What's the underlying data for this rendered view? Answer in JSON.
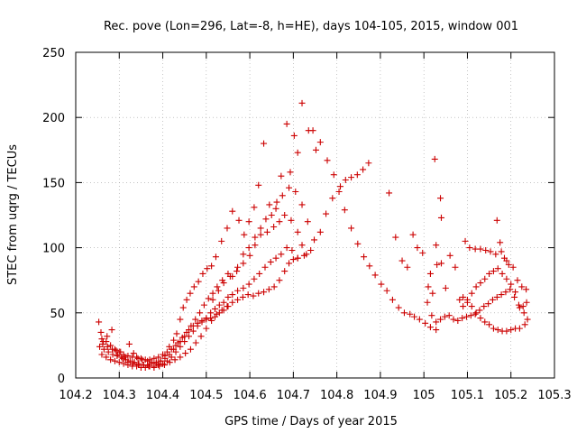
{
  "chart_data": {
    "type": "scatter",
    "title": "Rec. pove (Lon=296, Lat=-8, h=HE), days 104-105, 2015, window 001",
    "xlabel": "GPS time / Days of year 2015",
    "ylabel": "STEC from uqrg / TECUs",
    "xlim": [
      104.2,
      105.3
    ],
    "ylim": [
      0,
      250
    ],
    "xticks": [
      "104.2",
      "104.3",
      "104.4",
      "104.5",
      "104.6",
      "104.7",
      "104.8",
      "104.9",
      "105",
      "105.1",
      "105.2",
      "105.3"
    ],
    "yticks": [
      "0",
      "50",
      "100",
      "150",
      "200",
      "250"
    ],
    "grid": true,
    "marker": "plus",
    "color": "#cc0000",
    "points": [
      [
        104.253,
        43
      ],
      [
        104.258,
        35
      ],
      [
        104.263,
        28
      ],
      [
        104.272,
        32
      ],
      [
        104.283,
        37
      ],
      [
        104.293,
        21
      ],
      [
        104.303,
        20
      ],
      [
        104.313,
        16
      ],
      [
        104.323,
        26
      ],
      [
        104.333,
        19
      ],
      [
        104.343,
        15
      ],
      [
        104.353,
        14
      ],
      [
        104.365,
        13
      ],
      [
        104.375,
        12
      ],
      [
        104.385,
        12
      ],
      [
        104.395,
        13
      ],
      [
        104.405,
        17
      ],
      [
        104.415,
        24
      ],
      [
        104.425,
        29
      ],
      [
        104.432,
        34
      ],
      [
        104.44,
        45
      ],
      [
        104.447,
        54
      ],
      [
        104.455,
        60
      ],
      [
        104.463,
        65
      ],
      [
        104.472,
        70
      ],
      [
        104.482,
        74
      ],
      [
        104.492,
        80
      ],
      [
        104.502,
        84
      ],
      [
        104.512,
        86
      ],
      [
        104.522,
        93
      ],
      [
        104.535,
        105
      ],
      [
        104.548,
        115
      ],
      [
        104.56,
        128
      ],
      [
        104.575,
        121
      ],
      [
        104.587,
        110
      ],
      [
        104.598,
        120
      ],
      [
        104.61,
        131
      ],
      [
        104.62,
        148
      ],
      [
        104.632,
        180
      ],
      [
        104.645,
        133
      ],
      [
        104.66,
        130
      ],
      [
        104.672,
        155
      ],
      [
        104.685,
        195
      ],
      [
        104.693,
        158
      ],
      [
        104.702,
        186
      ],
      [
        104.71,
        173
      ],
      [
        104.72,
        211
      ],
      [
        104.735,
        190
      ],
      [
        104.745,
        190
      ],
      [
        104.752,
        175
      ],
      [
        104.762,
        181
      ],
      [
        104.778,
        167
      ],
      [
        104.793,
        156
      ],
      [
        104.808,
        147
      ],
      [
        104.82,
        152
      ],
      [
        104.833,
        154
      ],
      [
        104.847,
        156
      ],
      [
        104.86,
        160
      ],
      [
        104.873,
        165
      ],
      [
        104.255,
        24
      ],
      [
        104.265,
        22
      ],
      [
        104.275,
        20
      ],
      [
        104.285,
        18
      ],
      [
        104.295,
        17
      ],
      [
        104.305,
        16
      ],
      [
        104.315,
        14
      ],
      [
        104.325,
        13
      ],
      [
        104.335,
        12
      ],
      [
        104.345,
        11
      ],
      [
        104.355,
        10
      ],
      [
        104.365,
        10
      ],
      [
        104.375,
        11
      ],
      [
        104.385,
        11
      ],
      [
        104.395,
        13
      ],
      [
        104.405,
        15
      ],
      [
        104.415,
        18
      ],
      [
        104.425,
        22
      ],
      [
        104.435,
        27
      ],
      [
        104.445,
        31
      ],
      [
        104.455,
        35
      ],
      [
        104.465,
        40
      ],
      [
        104.475,
        45
      ],
      [
        104.485,
        50
      ],
      [
        104.495,
        56
      ],
      [
        104.505,
        61
      ],
      [
        104.515,
        65
      ],
      [
        104.525,
        70
      ],
      [
        104.537,
        75
      ],
      [
        104.55,
        80
      ],
      [
        104.56,
        78
      ],
      [
        104.572,
        85
      ],
      [
        104.585,
        95
      ],
      [
        104.598,
        100
      ],
      [
        104.612,
        108
      ],
      [
        104.625,
        115
      ],
      [
        104.637,
        122
      ],
      [
        104.65,
        125
      ],
      [
        104.662,
        135
      ],
      [
        104.675,
        140
      ],
      [
        104.69,
        146
      ],
      [
        104.705,
        143
      ],
      [
        104.72,
        133
      ],
      [
        104.733,
        120
      ],
      [
        104.748,
        106
      ],
      [
        104.762,
        112
      ],
      [
        104.775,
        126
      ],
      [
        104.79,
        138
      ],
      [
        104.805,
        143
      ],
      [
        104.818,
        129
      ],
      [
        104.833,
        115
      ],
      [
        104.848,
        103
      ],
      [
        104.862,
        93
      ],
      [
        104.875,
        86
      ],
      [
        104.888,
        79
      ],
      [
        104.902,
        72
      ],
      [
        104.915,
        67
      ],
      [
        104.928,
        60
      ],
      [
        104.942,
        54
      ],
      [
        104.955,
        50
      ],
      [
        104.968,
        49
      ],
      [
        104.978,
        47
      ],
      [
        104.99,
        45
      ],
      [
        105.003,
        42
      ],
      [
        105.015,
        39
      ],
      [
        105.028,
        37
      ],
      [
        104.26,
        18
      ],
      [
        104.27,
        16
      ],
      [
        104.28,
        14
      ],
      [
        104.29,
        13
      ],
      [
        104.3,
        12
      ],
      [
        104.31,
        11
      ],
      [
        104.32,
        10
      ],
      [
        104.33,
        9
      ],
      [
        104.34,
        9
      ],
      [
        104.35,
        8
      ],
      [
        104.36,
        8
      ],
      [
        104.37,
        9
      ],
      [
        104.38,
        9
      ],
      [
        104.39,
        10
      ],
      [
        104.4,
        11
      ],
      [
        104.41,
        13
      ],
      [
        104.42,
        16
      ],
      [
        104.43,
        20
      ],
      [
        104.44,
        24
      ],
      [
        104.45,
        28
      ],
      [
        104.46,
        32
      ],
      [
        104.47,
        36
      ],
      [
        104.48,
        40
      ],
      [
        104.49,
        43
      ],
      [
        104.5,
        46
      ],
      [
        104.51,
        50
      ],
      [
        104.52,
        53
      ],
      [
        104.53,
        56
      ],
      [
        104.54,
        58
      ],
      [
        104.55,
        62
      ],
      [
        104.56,
        64
      ],
      [
        104.572,
        67
      ],
      [
        104.585,
        69
      ],
      [
        104.598,
        72
      ],
      [
        104.61,
        76
      ],
      [
        104.622,
        80
      ],
      [
        104.635,
        85
      ],
      [
        104.648,
        89
      ],
      [
        104.66,
        92
      ],
      [
        104.672,
        95
      ],
      [
        104.685,
        100
      ],
      [
        104.697,
        98
      ],
      [
        104.71,
        92
      ],
      [
        104.725,
        94
      ],
      [
        104.74,
        98
      ],
      [
        104.262,
        26
      ],
      [
        104.273,
        24
      ],
      [
        104.284,
        22
      ],
      [
        104.296,
        18
      ],
      [
        104.308,
        15
      ],
      [
        104.32,
        12
      ],
      [
        104.332,
        11
      ],
      [
        104.344,
        10
      ],
      [
        104.356,
        10
      ],
      [
        104.368,
        9
      ],
      [
        104.38,
        8
      ],
      [
        104.392,
        9
      ],
      [
        104.404,
        10
      ],
      [
        104.416,
        12
      ],
      [
        104.428,
        14
      ],
      [
        104.44,
        16
      ],
      [
        104.452,
        19
      ],
      [
        104.464,
        22
      ],
      [
        104.476,
        27
      ],
      [
        104.488,
        32
      ],
      [
        104.5,
        38
      ],
      [
        104.512,
        44
      ],
      [
        104.524,
        49
      ],
      [
        104.536,
        52
      ],
      [
        104.548,
        55
      ],
      [
        104.56,
        58
      ],
      [
        104.572,
        60
      ],
      [
        104.584,
        62
      ],
      [
        104.596,
        64
      ],
      [
        104.608,
        63
      ],
      [
        104.62,
        65
      ],
      [
        104.632,
        66
      ],
      [
        104.644,
        68
      ],
      [
        104.656,
        70
      ],
      [
        104.668,
        75
      ],
      [
        104.68,
        82
      ],
      [
        104.69,
        88
      ],
      [
        104.7,
        91
      ],
      [
        104.71,
        92
      ],
      [
        104.92,
        142
      ],
      [
        104.935,
        108
      ],
      [
        104.95,
        90
      ],
      [
        104.962,
        85
      ],
      [
        104.975,
        110
      ],
      [
        104.985,
        100
      ],
      [
        104.997,
        96
      ],
      [
        105.01,
        70
      ],
      [
        105.02,
        65
      ],
      [
        105.03,
        87
      ],
      [
        105.04,
        88
      ],
      [
        105.05,
        69
      ],
      [
        105.06,
        94
      ],
      [
        105.072,
        85
      ],
      [
        105.082,
        60
      ],
      [
        105.09,
        62
      ],
      [
        105.1,
        58
      ],
      [
        105.11,
        55
      ],
      [
        105.12,
        50
      ],
      [
        105.13,
        46
      ],
      [
        105.14,
        43
      ],
      [
        105.15,
        41
      ],
      [
        105.16,
        38
      ],
      [
        105.17,
        37
      ],
      [
        105.18,
        36
      ],
      [
        105.19,
        36
      ],
      [
        105.2,
        37
      ],
      [
        105.21,
        38
      ],
      [
        105.22,
        38
      ],
      [
        105.232,
        41
      ],
      [
        105.025,
        168
      ],
      [
        105.038,
        138
      ],
      [
        105.04,
        123
      ],
      [
        105.028,
        102
      ],
      [
        105.015,
        80
      ],
      [
        105.008,
        58
      ],
      [
        105.018,
        48
      ],
      [
        105.028,
        43
      ],
      [
        105.038,
        45
      ],
      [
        105.048,
        47
      ],
      [
        105.058,
        48
      ],
      [
        105.068,
        45
      ],
      [
        105.078,
        44
      ],
      [
        105.088,
        46
      ],
      [
        105.098,
        47
      ],
      [
        105.108,
        48
      ],
      [
        105.118,
        49
      ],
      [
        105.128,
        52
      ],
      [
        105.138,
        55
      ],
      [
        105.148,
        57
      ],
      [
        105.158,
        60
      ],
      [
        105.168,
        62
      ],
      [
        105.178,
        64
      ],
      [
        105.188,
        66
      ],
      [
        105.198,
        68
      ],
      [
        105.208,
        62
      ],
      [
        105.218,
        56
      ],
      [
        105.228,
        55
      ],
      [
        105.236,
        58
      ],
      [
        105.095,
        105
      ],
      [
        105.105,
        100
      ],
      [
        105.118,
        99
      ],
      [
        105.13,
        99
      ],
      [
        105.142,
        98
      ],
      [
        105.153,
        97
      ],
      [
        105.165,
        95
      ],
      [
        105.175,
        104
      ],
      [
        105.185,
        92
      ],
      [
        105.195,
        87
      ],
      [
        105.205,
        85
      ],
      [
        105.215,
        75
      ],
      [
        105.225,
        70
      ],
      [
        105.235,
        68
      ],
      [
        105.168,
        121
      ],
      [
        105.178,
        97
      ],
      [
        105.19,
        90
      ],
      [
        105.09,
        55
      ],
      [
        105.1,
        60
      ],
      [
        105.11,
        65
      ],
      [
        105.12,
        70
      ],
      [
        105.13,
        73
      ],
      [
        105.14,
        76
      ],
      [
        105.15,
        80
      ],
      [
        105.16,
        82
      ],
      [
        105.17,
        84
      ],
      [
        105.18,
        80
      ],
      [
        105.19,
        76
      ],
      [
        105.2,
        72
      ],
      [
        105.21,
        66
      ],
      [
        105.22,
        54
      ],
      [
        105.23,
        50
      ],
      [
        105.238,
        45
      ],
      [
        104.26,
        30
      ],
      [
        104.27,
        28
      ],
      [
        104.28,
        25
      ],
      [
        104.29,
        22
      ],
      [
        104.3,
        20
      ],
      [
        104.31,
        18
      ],
      [
        104.32,
        17
      ],
      [
        104.33,
        16
      ],
      [
        104.34,
        16
      ],
      [
        104.35,
        15
      ],
      [
        104.36,
        14
      ],
      [
        104.37,
        14
      ],
      [
        104.38,
        15
      ],
      [
        104.39,
        16
      ],
      [
        104.4,
        18
      ],
      [
        104.41,
        20
      ],
      [
        104.42,
        22
      ],
      [
        104.43,
        25
      ],
      [
        104.44,
        28
      ],
      [
        104.45,
        32
      ],
      [
        104.46,
        37
      ],
      [
        104.47,
        40
      ],
      [
        104.48,
        42
      ],
      [
        104.49,
        44
      ],
      [
        104.5,
        45
      ],
      [
        104.51,
        46
      ],
      [
        104.52,
        47
      ],
      [
        104.53,
        50
      ],
      [
        104.54,
        52
      ],
      [
        104.55,
        55
      ],
      [
        104.515,
        60
      ],
      [
        104.528,
        67
      ],
      [
        104.54,
        73
      ],
      [
        104.555,
        78
      ],
      [
        104.57,
        82
      ],
      [
        104.585,
        88
      ],
      [
        104.6,
        94
      ],
      [
        104.612,
        102
      ],
      [
        104.625,
        110
      ],
      [
        104.64,
        112
      ],
      [
        104.655,
        116
      ],
      [
        104.668,
        120
      ],
      [
        104.68,
        125
      ],
      [
        104.695,
        121
      ],
      [
        104.71,
        112
      ],
      [
        104.72,
        102
      ],
      [
        104.73,
        95
      ]
    ]
  }
}
